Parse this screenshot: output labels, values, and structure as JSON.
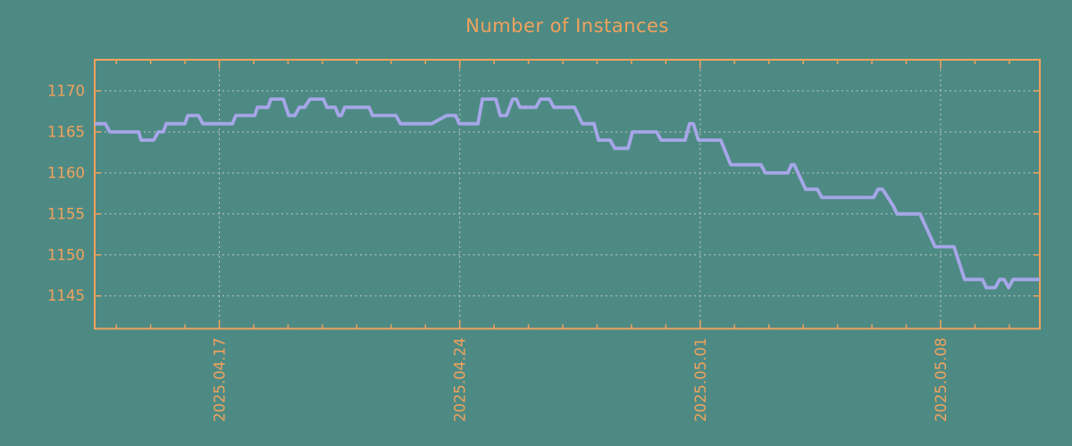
{
  "title": "Number of Instances",
  "colors": {
    "background": "#4E8A84",
    "axis_and_text": "#F0A25C",
    "grid": "#CCCFCA",
    "series_line": "#A6A6E8"
  },
  "chart_data": {
    "type": "line",
    "title": "Number of Instances",
    "xlabel": "",
    "ylabel": "",
    "legend": "none",
    "grid": true,
    "x_unit": "days since 2025-04-13 00:00",
    "xlim": [
      0.37,
      27.89
    ],
    "ylim": [
      1141.0,
      1173.8
    ],
    "y_ticks": [
      1145,
      1150,
      1155,
      1160,
      1165,
      1170
    ],
    "x_major_ticks": [
      {
        "pos": 4,
        "label": "2025.04.17"
      },
      {
        "pos": 11,
        "label": "2025.04.24"
      },
      {
        "pos": 18,
        "label": "2025.05.01"
      },
      {
        "pos": 25,
        "label": "2025.05.08"
      }
    ],
    "x_minor_tick_interval": 1,
    "series": [
      {
        "name": "instances",
        "points": [
          [
            0.37,
            1166
          ],
          [
            0.68,
            1166
          ],
          [
            0.81,
            1165
          ],
          [
            1.65,
            1165
          ],
          [
            1.72,
            1164
          ],
          [
            2.09,
            1164
          ],
          [
            2.22,
            1165
          ],
          [
            2.37,
            1165
          ],
          [
            2.45,
            1166
          ],
          [
            3.0,
            1166
          ],
          [
            3.08,
            1167
          ],
          [
            3.39,
            1167
          ],
          [
            3.52,
            1166
          ],
          [
            4.38,
            1166
          ],
          [
            4.48,
            1167
          ],
          [
            5.03,
            1167
          ],
          [
            5.11,
            1168
          ],
          [
            5.42,
            1168
          ],
          [
            5.5,
            1169
          ],
          [
            5.86,
            1169
          ],
          [
            6.02,
            1167
          ],
          [
            6.2,
            1167
          ],
          [
            6.33,
            1168
          ],
          [
            6.48,
            1168
          ],
          [
            6.64,
            1169
          ],
          [
            7.03,
            1169
          ],
          [
            7.13,
            1168
          ],
          [
            7.37,
            1168
          ],
          [
            7.47,
            1167
          ],
          [
            7.55,
            1167
          ],
          [
            7.65,
            1168
          ],
          [
            8.36,
            1168
          ],
          [
            8.46,
            1167
          ],
          [
            9.14,
            1167
          ],
          [
            9.27,
            1166
          ],
          [
            10.18,
            1166
          ],
          [
            10.62,
            1167
          ],
          [
            10.88,
            1167
          ],
          [
            10.98,
            1166
          ],
          [
            11.53,
            1166
          ],
          [
            11.66,
            1169
          ],
          [
            12.05,
            1169
          ],
          [
            12.18,
            1167
          ],
          [
            12.36,
            1167
          ],
          [
            12.54,
            1169
          ],
          [
            12.65,
            1169
          ],
          [
            12.75,
            1168
          ],
          [
            13.22,
            1168
          ],
          [
            13.35,
            1169
          ],
          [
            13.61,
            1169
          ],
          [
            13.74,
            1168
          ],
          [
            14.34,
            1168
          ],
          [
            14.57,
            1166
          ],
          [
            14.91,
            1166
          ],
          [
            15.04,
            1164
          ],
          [
            15.38,
            1164
          ],
          [
            15.51,
            1163
          ],
          [
            15.9,
            1163
          ],
          [
            16.03,
            1165
          ],
          [
            16.73,
            1165
          ],
          [
            16.86,
            1164
          ],
          [
            17.56,
            1164
          ],
          [
            17.69,
            1166
          ],
          [
            17.8,
            1166
          ],
          [
            17.95,
            1164
          ],
          [
            18.6,
            1164
          ],
          [
            18.89,
            1161
          ],
          [
            19.77,
            1161
          ],
          [
            19.9,
            1160
          ],
          [
            20.55,
            1160
          ],
          [
            20.66,
            1161
          ],
          [
            20.74,
            1161
          ],
          [
            21.07,
            1158
          ],
          [
            21.41,
            1158
          ],
          [
            21.54,
            1157
          ],
          [
            23.05,
            1157
          ],
          [
            23.18,
            1158
          ],
          [
            23.31,
            1158
          ],
          [
            23.62,
            1156
          ],
          [
            23.73,
            1155
          ],
          [
            24.4,
            1155
          ],
          [
            24.84,
            1151
          ],
          [
            25.39,
            1151
          ],
          [
            25.7,
            1147
          ],
          [
            26.22,
            1147
          ],
          [
            26.33,
            1146
          ],
          [
            26.59,
            1146
          ],
          [
            26.72,
            1147
          ],
          [
            26.85,
            1147
          ],
          [
            26.98,
            1146
          ],
          [
            27.11,
            1147
          ],
          [
            27.89,
            1147
          ]
        ]
      }
    ]
  }
}
